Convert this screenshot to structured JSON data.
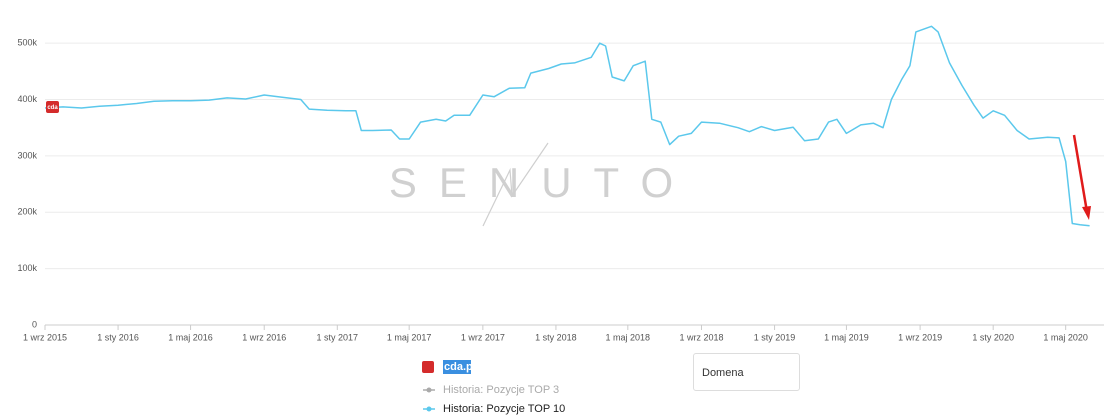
{
  "chart_data": {
    "type": "line",
    "watermark": "SENUTO",
    "logo_text": "cda",
    "legend_title": "cda.pl",
    "x": [
      "2015-09-01",
      "2015-10-01",
      "2015-11-01",
      "2015-12-01",
      "2016-01-01",
      "2016-02-01",
      "2016-03-01",
      "2016-04-01",
      "2016-05-01",
      "2016-06-01",
      "2016-07-01",
      "2016-08-01",
      "2016-09-01",
      "2016-10-01",
      "2016-11-01",
      "2016-11-15",
      "2016-12-15",
      "2017-01-15",
      "2017-02-01",
      "2017-02-10",
      "2017-03-01",
      "2017-04-01",
      "2017-04-15",
      "2017-05-01",
      "2017-05-20",
      "2017-06-15",
      "2017-07-01",
      "2017-07-15",
      "2017-08-10",
      "2017-09-01",
      "2017-09-20",
      "2017-10-15",
      "2017-11-10",
      "2017-11-20",
      "2017-12-20",
      "2018-01-10",
      "2018-02-01",
      "2018-03-01",
      "2018-03-15",
      "2018-03-25",
      "2018-04-05",
      "2018-04-25",
      "2018-05-10",
      "2018-05-30",
      "2018-06-10",
      "2018-06-25",
      "2018-07-10",
      "2018-07-25",
      "2018-08-15",
      "2018-09-01",
      "2018-10-01",
      "2018-11-01",
      "2018-11-20",
      "2018-12-10",
      "2019-01-01",
      "2019-02-01",
      "2019-02-20",
      "2019-03-15",
      "2019-04-01",
      "2019-04-15",
      "2019-05-01",
      "2019-05-25",
      "2019-06-15",
      "2019-07-01",
      "2019-07-15",
      "2019-08-01",
      "2019-08-15",
      "2019-08-25",
      "2019-09-20",
      "2019-10-01",
      "2019-10-20",
      "2019-11-10",
      "2019-11-30",
      "2019-12-15",
      "2020-01-01",
      "2020-01-20",
      "2020-02-10",
      "2020-03-01",
      "2020-04-01",
      "2020-04-20",
      "2020-05-01",
      "2020-05-12",
      "2020-05-25",
      "2020-06-10"
    ],
    "series": [
      {
        "name": "Historia: Pozycje TOP 10",
        "color": "#5bc8ec",
        "values": [
          385000,
          387000,
          385000,
          388000,
          390000,
          393000,
          397000,
          398000,
          398000,
          399000,
          403000,
          401000,
          408000,
          404000,
          400000,
          383000,
          381000,
          380000,
          380000,
          345000,
          345000,
          346000,
          330000,
          330000,
          360000,
          365000,
          362000,
          372000,
          372000,
          408000,
          405000,
          420000,
          421000,
          447000,
          455000,
          463000,
          465000,
          475000,
          500000,
          495000,
          440000,
          433000,
          460000,
          468000,
          365000,
          360000,
          320000,
          335000,
          340000,
          360000,
          358000,
          350000,
          343000,
          352000,
          345000,
          351000,
          327000,
          330000,
          360000,
          365000,
          340000,
          355000,
          358000,
          350000,
          400000,
          435000,
          460000,
          520000,
          530000,
          520000,
          465000,
          425000,
          390000,
          367000,
          380000,
          372000,
          345000,
          330000,
          333000,
          332000,
          290000,
          180000,
          178000,
          176000
        ]
      }
    ],
    "inactive_series": [
      {
        "name": "Historia: Pozycje TOP 3",
        "color": "#aaaaaa"
      }
    ],
    "xlim": [
      "2015-09-01",
      "2020-07-04"
    ],
    "xticks": [
      {
        "value": "2015-09-01",
        "label": "1 wrz 2015"
      },
      {
        "value": "2016-01-01",
        "label": "1 sty 2016"
      },
      {
        "value": "2016-05-01",
        "label": "1 maj 2016"
      },
      {
        "value": "2016-09-01",
        "label": "1 wrz 2016"
      },
      {
        "value": "2017-01-01",
        "label": "1 sty 2017"
      },
      {
        "value": "2017-05-01",
        "label": "1 maj 2017"
      },
      {
        "value": "2017-09-01",
        "label": "1 wrz 2017"
      },
      {
        "value": "2018-01-01",
        "label": "1 sty 2018"
      },
      {
        "value": "2018-05-01",
        "label": "1 maj 2018"
      },
      {
        "value": "2018-09-01",
        "label": "1 wrz 2018"
      },
      {
        "value": "2019-01-01",
        "label": "1 sty 2019"
      },
      {
        "value": "2019-05-01",
        "label": "1 maj 2019"
      },
      {
        "value": "2019-09-01",
        "label": "1 wrz 2019"
      },
      {
        "value": "2020-01-01",
        "label": "1 sty 2020"
      },
      {
        "value": "2020-05-01",
        "label": "1 maj 2020"
      }
    ],
    "ylim": [
      0,
      550000
    ],
    "yticks": [
      0,
      {
        "value": 100000,
        "label": "100k"
      },
      {
        "value": 200000,
        "label": "200k"
      },
      {
        "value": 300000,
        "label": "300k"
      },
      {
        "value": 400000,
        "label": "400k"
      },
      {
        "value": 500000,
        "label": "500k"
      }
    ],
    "grid": true
  },
  "domain_select": {
    "label": "Domena"
  }
}
